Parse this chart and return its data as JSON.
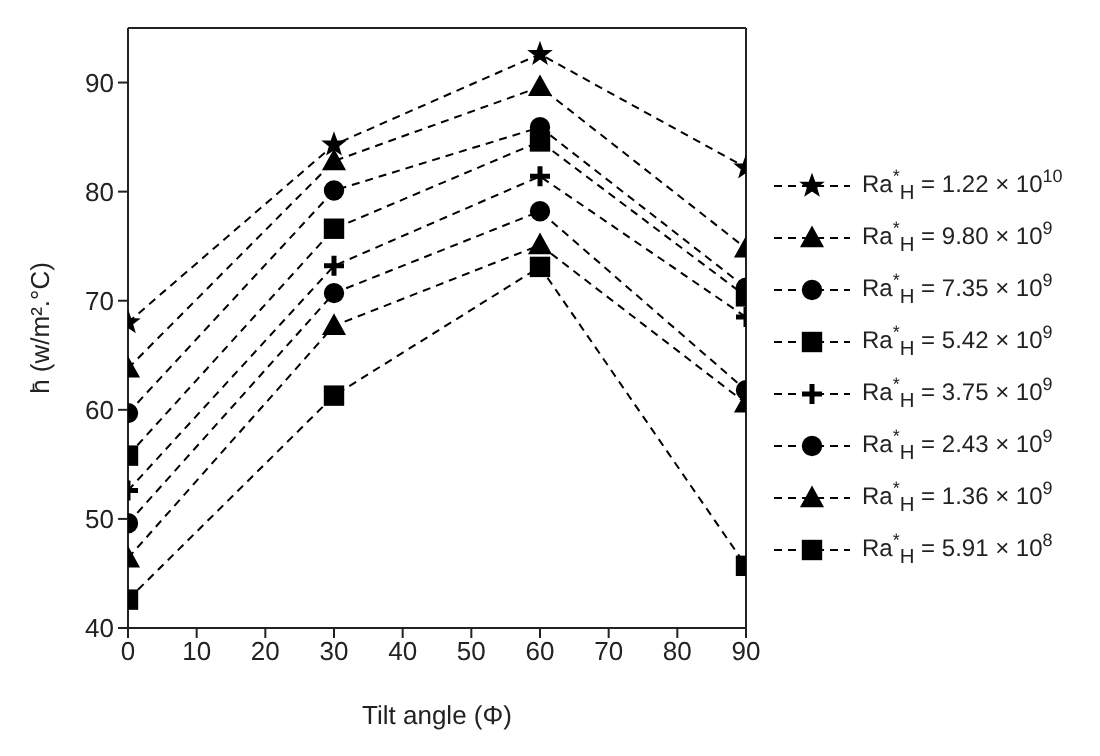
{
  "chart_data": {
    "type": "line",
    "xlabel": "Tilt angle (Φ)",
    "ylabel": "h̄ (w/m².°C)",
    "x": [
      0,
      30,
      60,
      90
    ],
    "xlim": [
      0,
      90
    ],
    "xticks": [
      0,
      10,
      20,
      30,
      40,
      50,
      60,
      70,
      80,
      90
    ],
    "ylim": [
      40,
      95
    ],
    "yticks": [
      40,
      50,
      60,
      70,
      80,
      90
    ],
    "grid": false,
    "legend": "right",
    "line_style": "dashed",
    "series": [
      {
        "name": "Ra$^{*}$$_{H}$ = 1.22 × 10$^{10}$",
        "color": "#000000",
        "marker": "star",
        "values": [
          68,
          84.3,
          92.6,
          82.2
        ]
      },
      {
        "name": "Ra$^{*}$$_{H}$ = 9.80 × 10$^{9}$",
        "color": "#000000",
        "marker": "triangle",
        "values": [
          63.8,
          82.8,
          89.6,
          74.8
        ]
      },
      {
        "name": "Ra$^{*}$$_{H}$ = 7.35 × 10$^{9}$",
        "color": "#000000",
        "marker": "circle",
        "values": [
          59.7,
          80.1,
          85.9,
          71.2
        ]
      },
      {
        "name": "Ra$^{*}$$_{H}$ = 5.42 × 10$^{9}$",
        "color": "#000000",
        "marker": "square",
        "values": [
          55.8,
          76.6,
          84.6,
          70.4
        ]
      },
      {
        "name": "Ra$^{*}$$_{H}$ = 3.75 × 10$^{9}$",
        "color": "#000000",
        "marker": "cross",
        "values": [
          52.6,
          73.2,
          81.4,
          68.5
        ]
      },
      {
        "name": "Ra$^{*}$$_{H}$ = 2.43 × 10$^{9}$",
        "color": "#000000",
        "marker": "circle",
        "values": [
          49.6,
          70.7,
          78.2,
          61.8
        ]
      },
      {
        "name": "Ra$^{*}$$_{H}$ = 1.36 × 10$^{9}$",
        "color": "#000000",
        "marker": "triangle",
        "values": [
          46.4,
          67.7,
          75.1,
          60.6
        ]
      },
      {
        "name": "Ra$^{*}$$_{H}$ = 5.91 × 10$^{8}$",
        "color": "#000000",
        "marker": "square",
        "values": [
          42.6,
          61.3,
          73.1,
          45.7
        ]
      }
    ]
  }
}
